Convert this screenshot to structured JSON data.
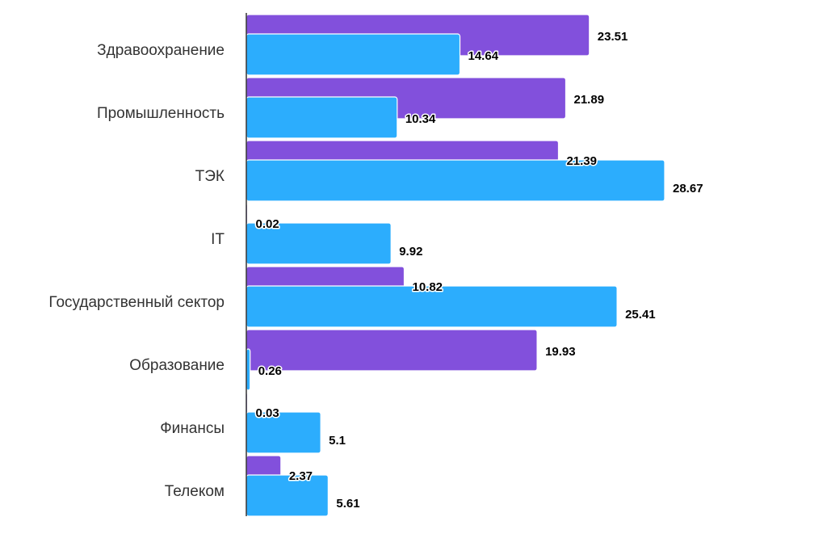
{
  "chart_data": {
    "type": "bar",
    "orientation": "horizontal",
    "categories": [
      "Здравоохранение",
      "Промышленность",
      "ТЭК",
      "IT",
      "Государственный сектор",
      "Образование",
      "Финансы",
      "Телеком"
    ],
    "series": [
      {
        "color": "#8250dc",
        "values": [
          23.51,
          21.89,
          21.39,
          0.02,
          10.82,
          19.93,
          0.03,
          2.37
        ]
      },
      {
        "color": "#2cadfd",
        "values": [
          14.64,
          10.34,
          28.67,
          9.92,
          25.41,
          0.26,
          5.1,
          5.61
        ]
      }
    ],
    "value_labels": {
      "s0": [
        "23.51",
        "21.89",
        "21.39",
        "0.02",
        "10.82",
        "19.93",
        "0.03",
        "2.37"
      ],
      "s1": [
        "14.64",
        "10.34",
        "28.67",
        "9.92",
        "25.41",
        "0.26",
        "5.1",
        "5.61"
      ]
    },
    "xlim": [
      0,
      30
    ],
    "grid": false,
    "legend": "none",
    "title": "",
    "xlabel": "",
    "ylabel": ""
  }
}
